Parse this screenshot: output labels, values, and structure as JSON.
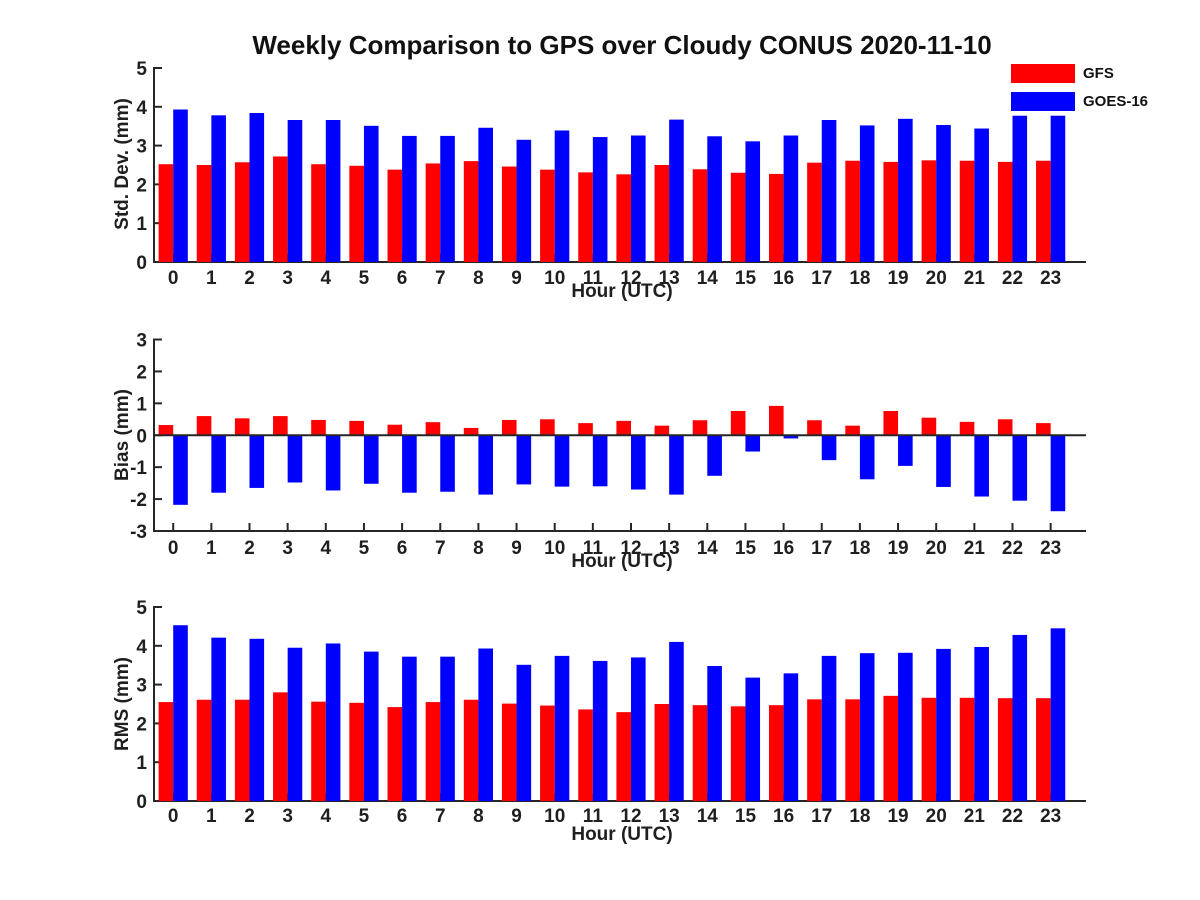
{
  "title": "Weekly Comparison to GPS over Cloudy CONUS 2020-11-10",
  "colors": {
    "gfs": "#ff0000",
    "goes16": "#0000ff",
    "axis": "#262626",
    "text": "#1f1f1f"
  },
  "legend": {
    "items": [
      {
        "label": "GFS",
        "color": "#ff0000"
      },
      {
        "label": "GOES-16",
        "color": "#0000ff"
      }
    ]
  },
  "chart_data": [
    {
      "type": "bar",
      "name": "std-dev",
      "title": "",
      "xlabel": "Hour (UTC)",
      "ylabel": "Std. Dev. (mm)",
      "ylim": [
        0,
        5
      ],
      "yticks": [
        0,
        1,
        2,
        3,
        4,
        5
      ],
      "grid": false,
      "legend_position": "top-right",
      "categories": [
        "0",
        "1",
        "2",
        "3",
        "4",
        "5",
        "6",
        "7",
        "8",
        "9",
        "10",
        "11",
        "12",
        "13",
        "14",
        "15",
        "16",
        "17",
        "18",
        "19",
        "20",
        "21",
        "22",
        "23"
      ],
      "series": [
        {
          "name": "GFS",
          "key": "gfs",
          "color": "#ff0000",
          "values": [
            2.52,
            2.5,
            2.57,
            2.72,
            2.52,
            2.48,
            2.38,
            2.54,
            2.6,
            2.46,
            2.38,
            2.31,
            2.26,
            2.5,
            2.39,
            2.3,
            2.27,
            2.56,
            2.61,
            2.58,
            2.62,
            2.61,
            2.58,
            2.61
          ]
        },
        {
          "name": "GOES-16",
          "key": "goes16",
          "color": "#0000ff",
          "values": [
            3.93,
            3.78,
            3.84,
            3.66,
            3.66,
            3.51,
            3.25,
            3.25,
            3.46,
            3.15,
            3.39,
            3.22,
            3.26,
            3.67,
            3.24,
            3.11,
            3.26,
            3.66,
            3.52,
            3.69,
            3.53,
            3.44,
            3.77,
            3.77
          ]
        }
      ]
    },
    {
      "type": "bar",
      "name": "bias",
      "title": "",
      "xlabel": "Hour (UTC)",
      "ylabel": "Bias (mm)",
      "ylim": [
        -3,
        3
      ],
      "yticks": [
        -3,
        -2,
        -1,
        0,
        1,
        2,
        3
      ],
      "grid": false,
      "categories": [
        "0",
        "1",
        "2",
        "3",
        "4",
        "5",
        "6",
        "7",
        "8",
        "9",
        "10",
        "11",
        "12",
        "13",
        "14",
        "15",
        "16",
        "17",
        "18",
        "19",
        "20",
        "21",
        "22",
        "23"
      ],
      "series": [
        {
          "name": "GFS",
          "key": "gfs",
          "color": "#ff0000",
          "values": [
            0.32,
            0.6,
            0.53,
            0.6,
            0.48,
            0.45,
            0.33,
            0.41,
            0.23,
            0.48,
            0.5,
            0.38,
            0.45,
            0.3,
            0.47,
            0.76,
            0.92,
            0.47,
            0.3,
            0.76,
            0.55,
            0.42,
            0.5,
            0.38
          ]
        },
        {
          "name": "GOES-16",
          "key": "goes16",
          "color": "#0000ff",
          "values": [
            -2.18,
            -1.8,
            -1.65,
            -1.48,
            -1.73,
            -1.52,
            -1.8,
            -1.77,
            -1.86,
            -1.54,
            -1.61,
            -1.6,
            -1.7,
            -1.86,
            -1.27,
            -0.51,
            -0.1,
            -0.78,
            -1.38,
            -0.96,
            -1.62,
            -1.92,
            -2.05,
            -2.38
          ]
        }
      ]
    },
    {
      "type": "bar",
      "name": "rms",
      "title": "",
      "xlabel": "Hour (UTC)",
      "ylabel": "RMS (mm)",
      "ylim": [
        0,
        5
      ],
      "yticks": [
        0,
        1,
        2,
        3,
        4,
        5
      ],
      "grid": false,
      "categories": [
        "0",
        "1",
        "2",
        "3",
        "4",
        "5",
        "6",
        "7",
        "8",
        "9",
        "10",
        "11",
        "12",
        "13",
        "14",
        "15",
        "16",
        "17",
        "18",
        "19",
        "20",
        "21",
        "22",
        "23"
      ],
      "series": [
        {
          "name": "GFS",
          "key": "gfs",
          "color": "#ff0000",
          "values": [
            2.55,
            2.61,
            2.61,
            2.8,
            2.56,
            2.53,
            2.42,
            2.55,
            2.61,
            2.51,
            2.46,
            2.36,
            2.29,
            2.5,
            2.47,
            2.44,
            2.47,
            2.62,
            2.62,
            2.71,
            2.66,
            2.66,
            2.65,
            2.65
          ]
        },
        {
          "name": "GOES-16",
          "key": "goes16",
          "color": "#0000ff",
          "values": [
            4.53,
            4.21,
            4.18,
            3.95,
            4.06,
            3.85,
            3.72,
            3.72,
            3.93,
            3.51,
            3.74,
            3.61,
            3.7,
            4.1,
            3.48,
            3.18,
            3.29,
            3.74,
            3.81,
            3.82,
            3.92,
            3.97,
            4.28,
            4.45
          ]
        }
      ]
    }
  ]
}
